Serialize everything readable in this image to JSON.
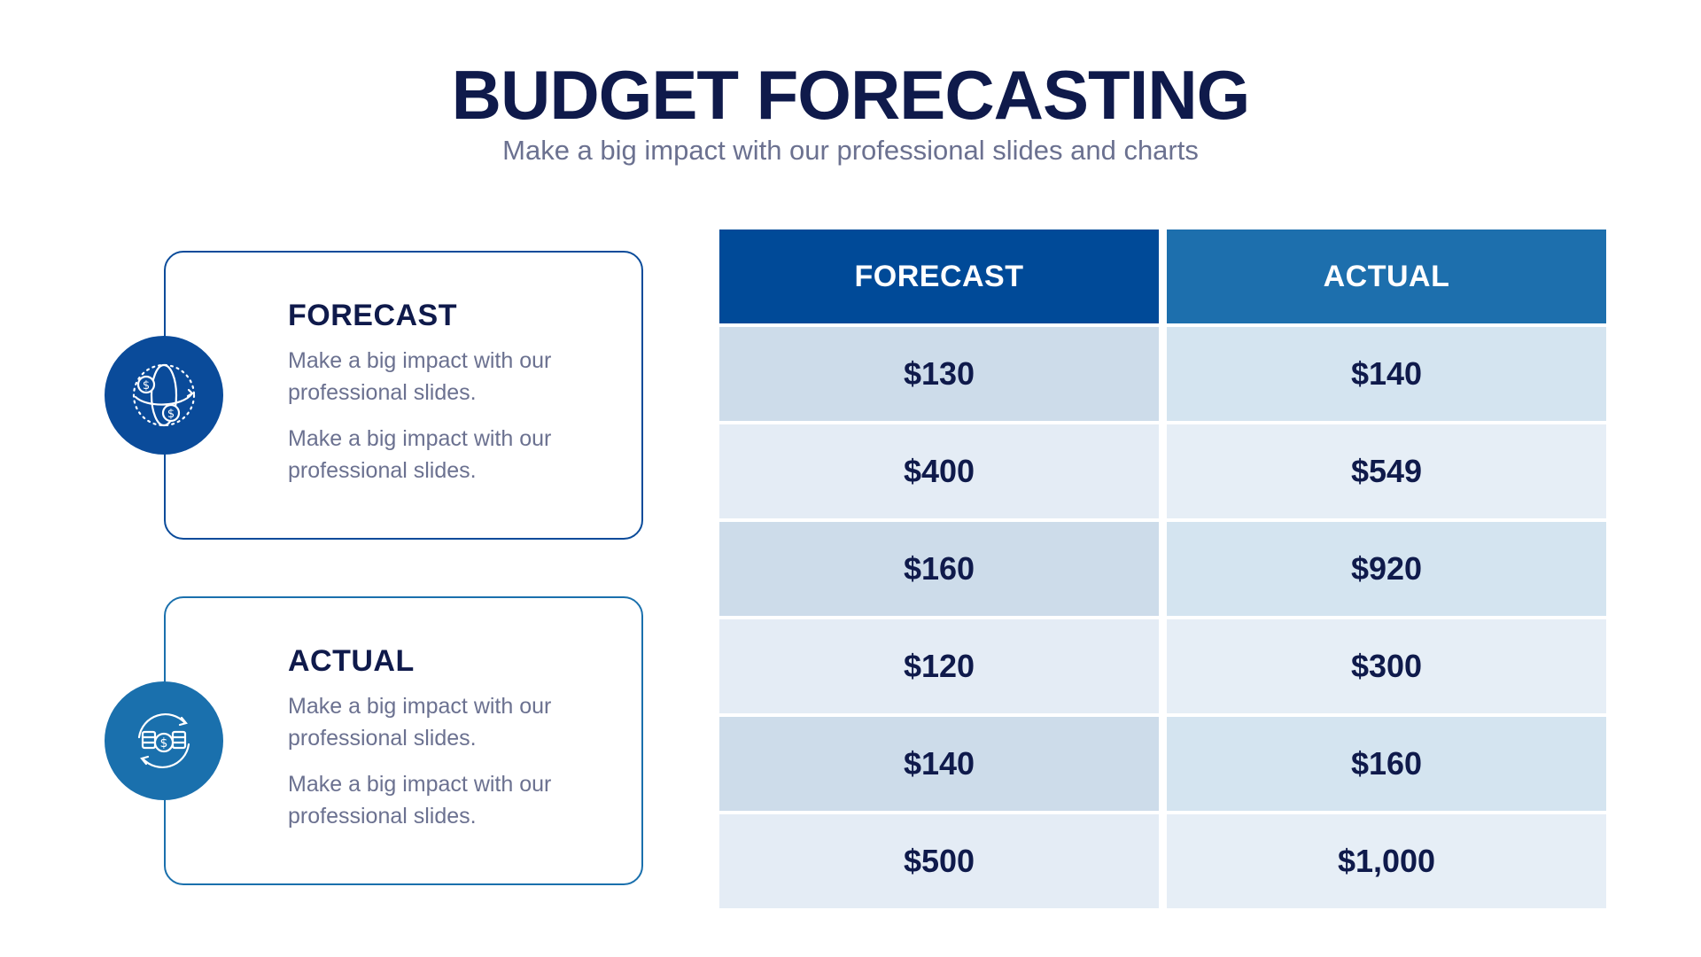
{
  "header": {
    "title": "BUDGET FORECASTING",
    "subtitle": "Make a big impact with our professional slides and charts"
  },
  "cards": [
    {
      "title": "FORECAST",
      "icon": "globe-dollar-icon",
      "color": "#0a4b9a",
      "text1": "Make a big impact with our professional slides.",
      "text2": "Make a big impact with our professional slides."
    },
    {
      "title": "ACTUAL",
      "icon": "coins-cycle-icon",
      "color": "#1a70ad",
      "text1": "Make a big impact with our professional slides.",
      "text2": "Make a big impact with our professional slides."
    }
  ],
  "table": {
    "headers": [
      "FORECAST",
      "ACTUAL"
    ],
    "rows": [
      [
        "$130",
        "$140"
      ],
      [
        "$400",
        "$549"
      ],
      [
        "$160",
        "$920"
      ],
      [
        "$120",
        "$300"
      ],
      [
        "$140",
        "$160"
      ],
      [
        "$500",
        "$1,000"
      ]
    ]
  }
}
